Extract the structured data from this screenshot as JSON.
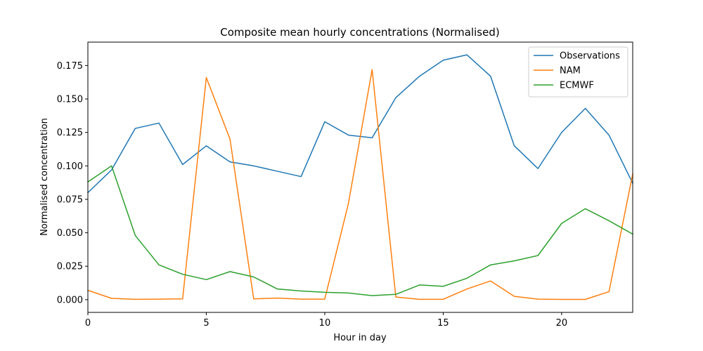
{
  "chart_data": {
    "type": "line",
    "title": "Composite mean hourly concentrations (Normalised)",
    "xlabel": "Hour in day",
    "ylabel": "Normalised concentration",
    "xlim": [
      0,
      23
    ],
    "ylim": [
      -0.0095,
      0.1925
    ],
    "x": [
      0,
      1,
      2,
      3,
      4,
      5,
      6,
      7,
      8,
      9,
      10,
      11,
      12,
      13,
      14,
      15,
      16,
      17,
      18,
      19,
      20,
      21,
      22,
      23
    ],
    "xticks": [
      0,
      5,
      10,
      15,
      20
    ],
    "yticks": [
      0.0,
      0.025,
      0.05,
      0.075,
      0.1,
      0.125,
      0.15,
      0.175
    ],
    "ytick_labels": [
      "0.000",
      "0.025",
      "0.050",
      "0.075",
      "0.100",
      "0.125",
      "0.150",
      "0.175"
    ],
    "grid": false,
    "legend_position": "top-right",
    "series": [
      {
        "name": "Observations",
        "color": "#1f77b4",
        "values": [
          0.08,
          0.097,
          0.128,
          0.132,
          0.101,
          0.115,
          0.103,
          0.1,
          0.096,
          0.092,
          0.133,
          0.123,
          0.121,
          0.151,
          0.167,
          0.179,
          0.183,
          0.167,
          0.115,
          0.098,
          0.125,
          0.143,
          0.123,
          0.087
        ]
      },
      {
        "name": "NAM",
        "color": "#ff7f0e",
        "values": [
          0.007,
          0.001,
          0.0003,
          0.0004,
          0.0006,
          0.166,
          0.12,
          0.0006,
          0.0012,
          0.0004,
          0.0004,
          0.072,
          0.172,
          0.002,
          0.0003,
          0.0003,
          0.008,
          0.014,
          0.0025,
          0.0004,
          0.0002,
          0.0002,
          0.006,
          0.094
        ]
      },
      {
        "name": "ECMWF",
        "color": "#2ca02c",
        "values": [
          0.088,
          0.1,
          0.048,
          0.026,
          0.019,
          0.015,
          0.021,
          0.017,
          0.008,
          0.0065,
          0.0055,
          0.005,
          0.003,
          0.004,
          0.011,
          0.01,
          0.016,
          0.026,
          0.029,
          0.033,
          0.057,
          0.068,
          0.059,
          0.049
        ]
      }
    ]
  }
}
